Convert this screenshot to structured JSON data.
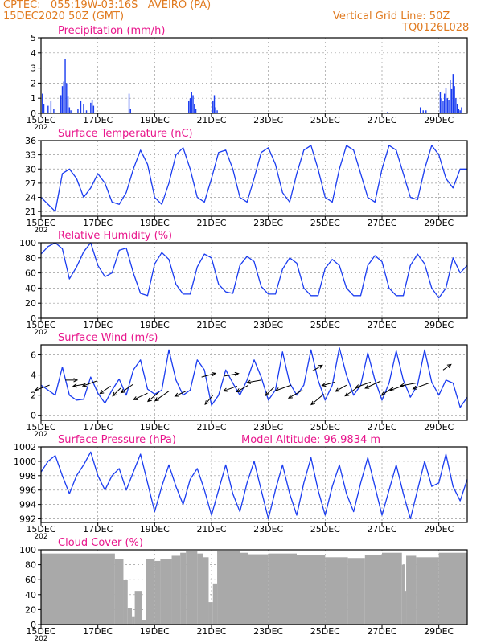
{
  "header": {
    "line1": "CPTEC:   055:19W-03:16S   AVEIRO (PA)",
    "line2": "15DEC2020 50Z (GMT)",
    "grid_note": "Vertical Grid Line: 50Z",
    "code": "TQ0126L028"
  },
  "colors": {
    "header": "#e07a1f",
    "title": "#e8168c",
    "series": "#1a3cf0",
    "cloud": "#a9a9a9",
    "vector": "#000000",
    "grid": "#9a9a9a"
  },
  "x_axis": {
    "range_days": [
      0,
      15
    ],
    "ticks": [
      {
        "day": 0,
        "label": "15DEC"
      },
      {
        "day": 2,
        "label": "17DEC"
      },
      {
        "day": 4,
        "label": "19DEC"
      },
      {
        "day": 6,
        "label": "21DEC"
      },
      {
        "day": 8,
        "label": "23DEC"
      },
      {
        "day": 10,
        "label": "25DEC"
      },
      {
        "day": 12,
        "label": "27DEC"
      },
      {
        "day": 14,
        "label": "29DEC"
      }
    ],
    "under_label": "202"
  },
  "chart_data": [
    {
      "id": "precip",
      "type": "bar",
      "title": "Precipitation (mm/h)",
      "ylim": [
        0,
        5
      ],
      "yticks": [
        0,
        1,
        2,
        3,
        4,
        5
      ],
      "bars": [
        [
          0.05,
          1.3
        ],
        [
          0.1,
          0.6
        ],
        [
          0.25,
          0.5
        ],
        [
          0.35,
          0.8
        ],
        [
          0.45,
          0.3
        ],
        [
          0.7,
          1.2
        ],
        [
          0.75,
          1.8
        ],
        [
          0.8,
          2.1
        ],
        [
          0.85,
          3.6
        ],
        [
          0.9,
          2.0
        ],
        [
          0.95,
          1.1
        ],
        [
          1.0,
          0.4
        ],
        [
          1.05,
          0.2
        ],
        [
          1.3,
          0.3
        ],
        [
          1.4,
          0.8
        ],
        [
          1.5,
          0.6
        ],
        [
          1.6,
          0.2
        ],
        [
          1.75,
          0.7
        ],
        [
          1.8,
          0.9
        ],
        [
          1.85,
          0.5
        ],
        [
          3.1,
          1.3
        ],
        [
          3.15,
          0.3
        ],
        [
          5.2,
          0.8
        ],
        [
          5.25,
          1.0
        ],
        [
          5.3,
          1.4
        ],
        [
          5.35,
          1.2
        ],
        [
          5.4,
          0.6
        ],
        [
          5.45,
          0.3
        ],
        [
          6.05,
          0.8
        ],
        [
          6.1,
          1.2
        ],
        [
          6.15,
          0.4
        ],
        [
          6.2,
          0.2
        ],
        [
          12.2,
          0.1
        ],
        [
          13.35,
          0.4
        ],
        [
          13.45,
          0.2
        ],
        [
          13.55,
          0.2
        ],
        [
          14.05,
          1.4
        ],
        [
          14.1,
          1.0
        ],
        [
          14.15,
          0.8
        ],
        [
          14.2,
          1.3
        ],
        [
          14.25,
          1.7
        ],
        [
          14.3,
          1.0
        ],
        [
          14.35,
          0.9
        ],
        [
          14.4,
          2.2
        ],
        [
          14.45,
          1.6
        ],
        [
          14.5,
          2.6
        ],
        [
          14.55,
          1.8
        ],
        [
          14.6,
          1.0
        ],
        [
          14.65,
          0.6
        ],
        [
          14.7,
          0.3
        ],
        [
          14.75,
          0.2
        ],
        [
          14.8,
          0.4
        ]
      ]
    },
    {
      "id": "temp",
      "type": "line",
      "title": "Surface Temperature (nC)",
      "ylim": [
        20,
        36
      ],
      "yticks": [
        21,
        24,
        27,
        30,
        33,
        36
      ],
      "x": [
        0,
        0.25,
        0.5,
        0.75,
        1.0,
        1.25,
        1.5,
        1.75,
        2.0,
        2.25,
        2.5,
        2.75,
        3.0,
        3.25,
        3.5,
        3.75,
        4.0,
        4.25,
        4.5,
        4.75,
        5.0,
        5.25,
        5.5,
        5.75,
        6.0,
        6.25,
        6.5,
        6.75,
        7.0,
        7.25,
        7.5,
        7.75,
        8.0,
        8.25,
        8.5,
        8.75,
        9.0,
        9.25,
        9.5,
        9.75,
        10.0,
        10.25,
        10.5,
        10.75,
        11.0,
        11.25,
        11.5,
        11.75,
        12.0,
        12.25,
        12.5,
        12.75,
        13.0,
        13.25,
        13.5,
        13.75,
        14.0,
        14.25,
        14.5,
        14.75,
        15.0
      ],
      "values": [
        24.0,
        22.5,
        21.0,
        29.0,
        30.0,
        28.0,
        24.0,
        26.0,
        29.0,
        27.0,
        23.0,
        22.5,
        25.0,
        30.0,
        34.0,
        31.0,
        24.0,
        22.5,
        27.0,
        33.0,
        34.5,
        30.0,
        24.0,
        23.0,
        28.0,
        33.5,
        34.0,
        30.0,
        24.0,
        23.0,
        28.0,
        33.5,
        34.5,
        31.0,
        25.0,
        23.0,
        29.0,
        34.0,
        35.0,
        30.0,
        24.0,
        23.0,
        30.0,
        35.0,
        34.0,
        29.0,
        24.0,
        23.0,
        30.0,
        35.0,
        34.0,
        29.0,
        24.0,
        23.5,
        30.0,
        35.0,
        33.0,
        28.0,
        26.0,
        30.0,
        30.0
      ]
    },
    {
      "id": "rh",
      "type": "line",
      "title": "Relative Humidity (%)",
      "ylim": [
        0,
        100
      ],
      "yticks": [
        0,
        20,
        40,
        60,
        80,
        100
      ],
      "x": [
        0,
        0.25,
        0.5,
        0.75,
        1.0,
        1.25,
        1.5,
        1.75,
        2.0,
        2.25,
        2.5,
        2.75,
        3.0,
        3.25,
        3.5,
        3.75,
        4.0,
        4.25,
        4.5,
        4.75,
        5.0,
        5.25,
        5.5,
        5.75,
        6.0,
        6.25,
        6.5,
        6.75,
        7.0,
        7.25,
        7.5,
        7.75,
        8.0,
        8.25,
        8.5,
        8.75,
        9.0,
        9.25,
        9.5,
        9.75,
        10.0,
        10.25,
        10.5,
        10.75,
        11.0,
        11.25,
        11.5,
        11.75,
        12.0,
        12.25,
        12.5,
        12.75,
        13.0,
        13.25,
        13.5,
        13.75,
        14.0,
        14.25,
        14.5,
        14.75,
        15.0
      ],
      "values": [
        85,
        95,
        100,
        92,
        52,
        68,
        88,
        100,
        70,
        55,
        60,
        90,
        93,
        60,
        33,
        30,
        72,
        87,
        78,
        45,
        32,
        32,
        68,
        85,
        80,
        45,
        35,
        33,
        70,
        82,
        75,
        42,
        32,
        32,
        65,
        80,
        73,
        40,
        30,
        30,
        66,
        78,
        70,
        40,
        30,
        30,
        70,
        83,
        75,
        40,
        30,
        30,
        70,
        85,
        72,
        40,
        27,
        40,
        80,
        60,
        70
      ]
    },
    {
      "id": "wind",
      "type": "line",
      "title": "Surface Wind (m/s)",
      "ylim": [
        -0.5,
        7
      ],
      "yticks": [
        0,
        2,
        4,
        6
      ],
      "x": [
        0,
        0.25,
        0.5,
        0.75,
        1.0,
        1.25,
        1.5,
        1.75,
        2.0,
        2.25,
        2.5,
        2.75,
        3.0,
        3.25,
        3.5,
        3.75,
        4.0,
        4.25,
        4.5,
        4.75,
        5.0,
        5.25,
        5.5,
        5.75,
        6.0,
        6.25,
        6.5,
        6.75,
        7.0,
        7.25,
        7.5,
        7.75,
        8.0,
        8.25,
        8.5,
        8.75,
        9.0,
        9.25,
        9.5,
        9.75,
        10.0,
        10.25,
        10.5,
        10.75,
        11.0,
        11.25,
        11.5,
        11.75,
        12.0,
        12.25,
        12.5,
        12.75,
        13.0,
        13.25,
        13.5,
        13.75,
        14.0,
        14.25,
        14.5,
        14.75,
        15.0
      ],
      "values": [
        3.0,
        2.5,
        2.0,
        4.8,
        2.0,
        1.5,
        1.6,
        3.8,
        2.2,
        1.2,
        2.5,
        3.6,
        2.0,
        4.5,
        5.5,
        2.6,
        2.1,
        2.5,
        6.5,
        3.5,
        2.0,
        2.5,
        5.5,
        4.5,
        1.0,
        2.0,
        4.5,
        3.2,
        2.0,
        3.5,
        5.5,
        3.8,
        1.5,
        2.5,
        6.3,
        3.2,
        2.0,
        3.0,
        6.5,
        3.5,
        1.5,
        3.0,
        6.7,
        4.0,
        2.0,
        3.0,
        6.2,
        3.5,
        1.5,
        3.2,
        6.4,
        3.5,
        1.8,
        3.0,
        6.5,
        3.3,
        2.0,
        3.5,
        3.2,
        0.8,
        1.8
      ],
      "vectors_note": "wind direction arrows (direction in degrees toward, length ~ speed)",
      "vectors": [
        [
          0.3,
          3.0,
          200,
          3.2
        ],
        [
          0.85,
          3.5,
          0,
          2.5
        ],
        [
          1.55,
          3.1,
          190,
          2.5
        ],
        [
          1.95,
          3.4,
          200,
          3.0
        ],
        [
          2.45,
          2.9,
          215,
          2.7
        ],
        [
          2.8,
          2.7,
          225,
          2.3
        ],
        [
          3.25,
          3.1,
          215,
          3.1
        ],
        [
          3.75,
          2.2,
          205,
          3.2
        ],
        [
          4.15,
          2.3,
          220,
          3.0
        ],
        [
          4.5,
          2.4,
          215,
          3.5
        ],
        [
          5.1,
          2.4,
          205,
          2.5
        ],
        [
          5.65,
          3.8,
          15,
          3.0
        ],
        [
          6.05,
          2.0,
          230,
          2.5
        ],
        [
          6.45,
          3.9,
          10,
          3.0
        ],
        [
          6.9,
          2.9,
          200,
          3.0
        ],
        [
          7.3,
          3.0,
          210,
          2.8
        ],
        [
          7.75,
          3.5,
          190,
          3.0
        ],
        [
          8.2,
          2.8,
          225,
          2.5
        ],
        [
          8.8,
          3.0,
          200,
          3.4
        ],
        [
          9.2,
          2.5,
          210,
          3.3
        ],
        [
          9.55,
          4.4,
          30,
          2.4
        ],
        [
          9.95,
          2.1,
          220,
          3.4
        ],
        [
          10.35,
          3.3,
          195,
          2.8
        ],
        [
          10.75,
          3.0,
          210,
          2.6
        ],
        [
          11.15,
          2.8,
          215,
          3.2
        ],
        [
          11.6,
          3.3,
          200,
          3.3
        ],
        [
          11.95,
          3.4,
          205,
          3.5
        ],
        [
          12.4,
          2.8,
          215,
          3.0
        ],
        [
          12.8,
          3.0,
          200,
          3.2
        ],
        [
          13.2,
          3.2,
          190,
          3.3
        ],
        [
          13.65,
          3.2,
          200,
          3.5
        ],
        [
          14.15,
          4.5,
          35,
          2.0
        ]
      ]
    },
    {
      "id": "pres",
      "type": "line",
      "title": "Surface Pressure (hPa)",
      "extra_label": "Model Altitude: 96.9834 m",
      "ylim": [
        991.5,
        1002
      ],
      "yticks": [
        992,
        994,
        996,
        998,
        1000,
        1002
      ],
      "x": [
        0,
        0.25,
        0.5,
        0.75,
        1.0,
        1.25,
        1.5,
        1.75,
        2.0,
        2.25,
        2.5,
        2.75,
        3.0,
        3.25,
        3.5,
        3.75,
        4.0,
        4.25,
        4.5,
        4.75,
        5.0,
        5.25,
        5.5,
        5.75,
        6.0,
        6.25,
        6.5,
        6.75,
        7.0,
        7.25,
        7.5,
        7.75,
        8.0,
        8.25,
        8.5,
        8.75,
        9.0,
        9.25,
        9.5,
        9.75,
        10.0,
        10.25,
        10.5,
        10.75,
        11.0,
        11.25,
        11.5,
        11.75,
        12.0,
        12.25,
        12.5,
        12.75,
        13.0,
        13.25,
        13.5,
        13.75,
        14.0,
        14.25,
        14.5,
        14.75,
        15.0
      ],
      "values": [
        998.5,
        1000.0,
        1000.8,
        998.0,
        995.5,
        998.0,
        999.5,
        1001.3,
        998.0,
        996.0,
        998.0,
        999.0,
        996.0,
        998.5,
        1001.0,
        997.0,
        993.0,
        996.5,
        999.5,
        996.5,
        994.0,
        997.5,
        999.0,
        996.0,
        992.5,
        996.0,
        999.5,
        995.5,
        993.0,
        997.0,
        1000.0,
        996.0,
        992.0,
        996.0,
        999.5,
        995.5,
        992.5,
        997.0,
        1000.5,
        996.0,
        992.5,
        996.5,
        999.5,
        995.5,
        993.0,
        997.0,
        1000.5,
        996.5,
        992.5,
        996.0,
        999.5,
        995.5,
        992.0,
        996.0,
        1000.0,
        996.5,
        997.0,
        1001.0,
        996.5,
        994.5,
        997.5
      ]
    },
    {
      "id": "cloud",
      "type": "bar",
      "title": "Cloud Cover (%)",
      "ylim": [
        0,
        100
      ],
      "yticks": [
        0,
        20,
        40,
        60,
        80,
        100
      ],
      "segments_note": "continuous shaded area; [start_day, end_day, percent]",
      "segments": [
        [
          0.0,
          2.6,
          95
        ],
        [
          2.6,
          2.9,
          88
        ],
        [
          2.9,
          3.05,
          60
        ],
        [
          3.05,
          3.2,
          22
        ],
        [
          3.2,
          3.3,
          10
        ],
        [
          3.3,
          3.55,
          45
        ],
        [
          3.55,
          3.7,
          6
        ],
        [
          3.7,
          4.0,
          88
        ],
        [
          4.0,
          4.2,
          85
        ],
        [
          4.2,
          4.6,
          88
        ],
        [
          4.6,
          4.9,
          92
        ],
        [
          4.9,
          5.1,
          96
        ],
        [
          5.1,
          5.5,
          98
        ],
        [
          5.5,
          5.7,
          95
        ],
        [
          5.7,
          5.9,
          90
        ],
        [
          5.9,
          6.05,
          30
        ],
        [
          6.05,
          6.2,
          55
        ],
        [
          6.2,
          7.0,
          98
        ],
        [
          7.0,
          7.3,
          96
        ],
        [
          7.3,
          8.0,
          94
        ],
        [
          8.0,
          9.0,
          95
        ],
        [
          9.0,
          10.0,
          93
        ],
        [
          10.0,
          10.8,
          90
        ],
        [
          10.8,
          11.4,
          89
        ],
        [
          11.4,
          12.0,
          93
        ],
        [
          12.0,
          12.7,
          96
        ],
        [
          12.7,
          12.8,
          80
        ],
        [
          12.8,
          12.85,
          45
        ],
        [
          12.85,
          13.2,
          92
        ],
        [
          13.2,
          14.0,
          90
        ],
        [
          14.0,
          15.0,
          96
        ]
      ]
    }
  ]
}
